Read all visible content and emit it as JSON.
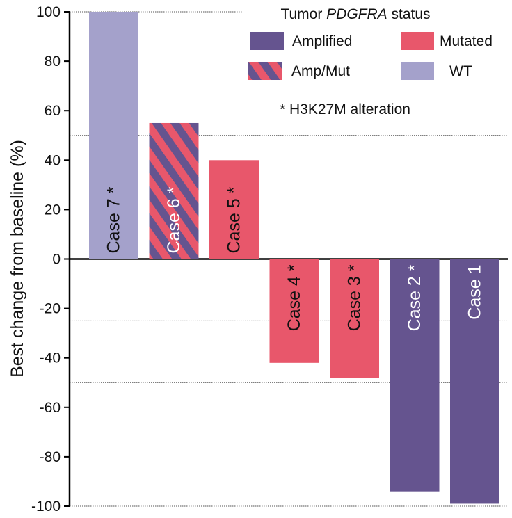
{
  "chart_data": {
    "type": "bar",
    "ylabel": "Best change from baseline (%)",
    "ylim": [
      -100,
      100
    ],
    "yticks": [
      100,
      80,
      60,
      40,
      20,
      0,
      -20,
      -40,
      -60,
      -80,
      -100
    ],
    "ref_lines": [
      100,
      50,
      0,
      -25,
      -50,
      -100
    ],
    "bars": [
      {
        "label": "Case 7",
        "mark": "*",
        "value": 100,
        "status": "WT"
      },
      {
        "label": "Case 6",
        "mark": "*",
        "value": 55,
        "status": "Amp/Mut"
      },
      {
        "label": "Case 5",
        "mark": "*",
        "value": 40,
        "status": "Mutated"
      },
      {
        "label": "Case 4",
        "mark": "*",
        "value": -42,
        "status": "Mutated"
      },
      {
        "label": "Case 3",
        "mark": "*",
        "value": -48,
        "status": "Mutated"
      },
      {
        "label": "Case 2",
        "mark": "*",
        "value": -94,
        "status": "Amplified"
      },
      {
        "label": "Case 1",
        "mark": "",
        "value": -99,
        "status": "Amplified"
      }
    ],
    "legend": {
      "title_prefix": "Tumor",
      "title_italic": "PDGFRA",
      "title_suffix": "status",
      "note": "* H3K27M alteration",
      "entries": [
        {
          "name": "Amplified",
          "color": "#65548f"
        },
        {
          "name": "Mutated",
          "color": "#e8576b"
        },
        {
          "name": "Amp/Mut",
          "color": "#65548f",
          "stripe": "#e8576b"
        },
        {
          "name": "WT",
          "color": "#a4a1cb"
        }
      ]
    },
    "colors": {
      "Amplified": "#65548f",
      "Mutated": "#e8576b",
      "WT": "#a4a1cb",
      "Amp/Mut": "#65548f",
      "Amp/Mut_stripe": "#e8576b"
    }
  }
}
